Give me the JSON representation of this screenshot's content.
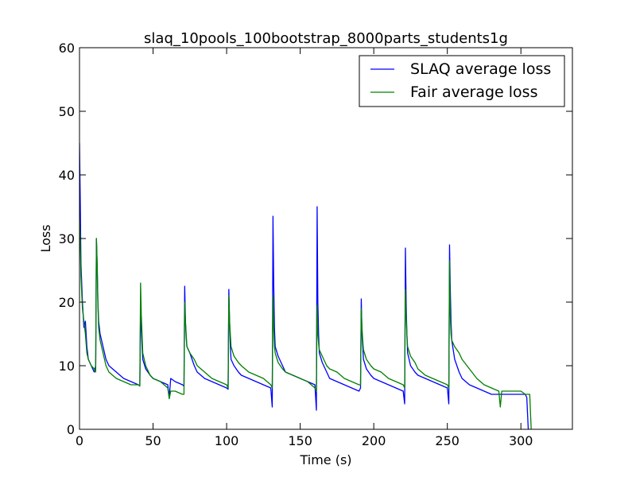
{
  "chart_data": {
    "type": "line",
    "title": "slaq_10pools_100bootstrap_8000parts_students1g",
    "xlabel": "Time (s)",
    "ylabel": "Loss",
    "xlim": [
      0,
      335
    ],
    "ylim": [
      0,
      60
    ],
    "xticks": [
      0,
      50,
      100,
      150,
      200,
      250,
      300
    ],
    "yticks": [
      0,
      10,
      20,
      30,
      40,
      50,
      60
    ],
    "grid": false,
    "legend_position": "top-right",
    "series": [
      {
        "name": "SLAQ average loss",
        "color": "#0000ff",
        "x": [
          0,
          0.5,
          1,
          2,
          3,
          4,
          5,
          6,
          8,
          10,
          11,
          11.5,
          12,
          12.5,
          13,
          14,
          16,
          18,
          20,
          25,
          30,
          35,
          40,
          41,
          41.5,
          42,
          42.5,
          43,
          45,
          48,
          50,
          55,
          60,
          61,
          62,
          65,
          70,
          71,
          71.5,
          72,
          72.5,
          73,
          75,
          78,
          80,
          85,
          90,
          95,
          100,
          101,
          101.5,
          102,
          102.5,
          103,
          105,
          108,
          110,
          115,
          120,
          125,
          130,
          131,
          131.5,
          132,
          132.5,
          133,
          135,
          138,
          140,
          145,
          150,
          155,
          160,
          161,
          161.5,
          162,
          162.5,
          163,
          165,
          168,
          170,
          175,
          180,
          185,
          190,
          191,
          191.5,
          192,
          192.5,
          193,
          195,
          198,
          200,
          205,
          210,
          215,
          220,
          221,
          221.5,
          222,
          222.5,
          223,
          225,
          228,
          230,
          235,
          240,
          245,
          250,
          251,
          251.5,
          252,
          252.5,
          253,
          255,
          258,
          260,
          265,
          270,
          275,
          280,
          285,
          290,
          295,
          300,
          303,
          304,
          305,
          306
        ],
        "y": [
          45,
          36,
          26,
          20,
          16,
          17,
          13,
          11,
          10,
          9,
          10,
          30,
          26,
          20,
          17,
          15,
          13,
          11,
          10,
          9,
          8,
          7.5,
          7,
          6.8,
          19,
          16,
          13,
          11,
          9.5,
          8.5,
          8,
          7.5,
          7,
          5,
          8,
          7.5,
          7,
          6.8,
          22.5,
          17,
          14.5,
          13,
          12,
          10,
          9,
          8,
          7.5,
          7,
          6.5,
          6.3,
          22,
          17,
          13,
          11,
          10,
          9,
          8.5,
          8,
          7.5,
          7,
          6.5,
          3.5,
          33.5,
          23,
          16,
          13,
          11.5,
          10,
          9,
          8.5,
          8,
          7.5,
          7,
          3,
          35,
          20,
          15,
          12,
          10.5,
          9,
          8,
          7.5,
          7,
          6.5,
          6,
          6.5,
          20.5,
          15,
          13,
          11,
          9.5,
          8.5,
          8,
          7.5,
          7,
          6.5,
          6,
          4,
          28.5,
          20,
          15,
          12,
          10,
          9,
          8.5,
          8,
          7.5,
          7,
          6.5,
          4,
          29,
          22,
          17,
          14,
          11,
          9,
          8,
          7,
          6.5,
          6,
          5.5,
          5.5,
          5.5,
          5.5,
          5.5,
          5.5,
          5,
          0,
          0
        ]
      },
      {
        "name": "Fair average loss",
        "color": "#008000",
        "x": [
          0,
          0.5,
          1,
          2,
          3,
          4,
          5,
          6,
          8,
          10,
          11,
          11.5,
          12,
          12.5,
          13,
          14,
          16,
          18,
          20,
          25,
          30,
          35,
          40,
          41,
          41.5,
          42,
          42.5,
          43,
          45,
          48,
          50,
          55,
          60,
          61,
          62,
          65,
          70,
          71,
          71.5,
          72,
          72.5,
          73,
          75,
          78,
          80,
          85,
          90,
          95,
          100,
          101,
          101.5,
          102,
          102.5,
          103,
          105,
          108,
          110,
          115,
          120,
          125,
          130,
          131,
          131.5,
          132,
          132.5,
          133,
          135,
          138,
          140,
          145,
          150,
          155,
          160,
          161,
          161.5,
          162,
          162.5,
          163,
          165,
          168,
          170,
          175,
          180,
          185,
          190,
          191,
          191.5,
          192,
          192.5,
          193,
          195,
          198,
          200,
          205,
          210,
          215,
          220,
          221,
          221.5,
          222,
          222.5,
          223,
          225,
          228,
          230,
          235,
          240,
          245,
          250,
          251,
          251.5,
          252,
          252.5,
          253,
          255,
          258,
          260,
          265,
          270,
          275,
          280,
          285,
          286,
          287,
          290,
          295,
          300,
          303,
          305,
          306,
          307
        ],
        "y": [
          33,
          30,
          24,
          19,
          17,
          15,
          12,
          11,
          10,
          9.5,
          9,
          30,
          26,
          20,
          16,
          14,
          12,
          10,
          9,
          8,
          7.5,
          7,
          7,
          6.8,
          23,
          18,
          15,
          12,
          10,
          8.5,
          8,
          7.5,
          6.5,
          4.8,
          6,
          6,
          5.5,
          5.5,
          20,
          17,
          15,
          13,
          12,
          11,
          10,
          9,
          8,
          7.5,
          7,
          6.5,
          21,
          17,
          15,
          13,
          11.5,
          10.5,
          10,
          9,
          8.5,
          8,
          7,
          6.5,
          21,
          16,
          13,
          12,
          10.5,
          9.5,
          9,
          8.5,
          8,
          7.5,
          6.5,
          6,
          19.5,
          15,
          13.5,
          12.5,
          11.5,
          10,
          9.5,
          9,
          8,
          7.5,
          7,
          7,
          19,
          16,
          14,
          12.5,
          11,
          10,
          9.5,
          9,
          8,
          7.5,
          7,
          6.5,
          22,
          18,
          15,
          13,
          11.5,
          10.5,
          9.5,
          8.5,
          8,
          7.5,
          7,
          6.5,
          26.5,
          18,
          15,
          14,
          13,
          12,
          11,
          9.5,
          8,
          7,
          6.5,
          6,
          3.5,
          6,
          6,
          6,
          6,
          5.5,
          5.5,
          5.5,
          0
        ]
      }
    ]
  }
}
